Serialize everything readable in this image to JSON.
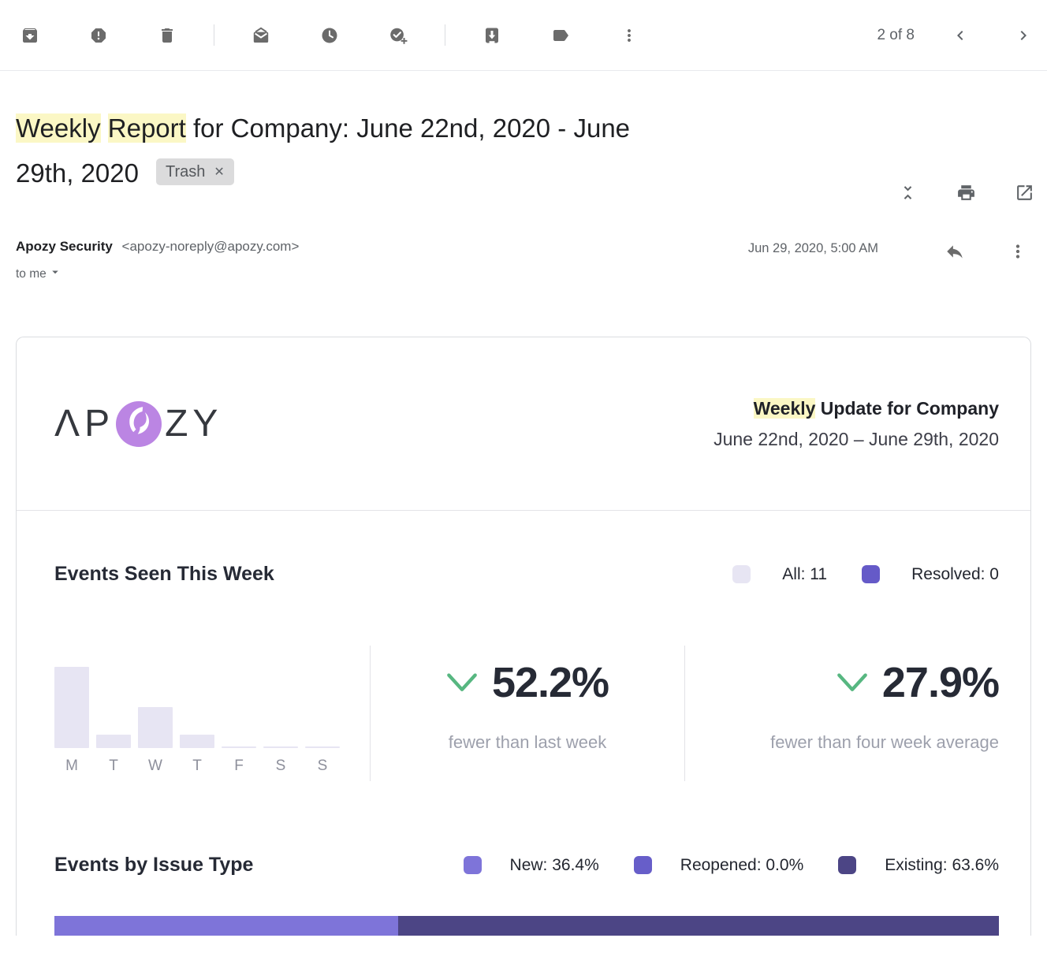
{
  "toolbar": {
    "pagination": "2 of 8",
    "icons": [
      "archive",
      "report-spam",
      "delete",
      "mark-unread",
      "snooze",
      "add-to-tasks",
      "move-to",
      "labels",
      "more"
    ]
  },
  "subject": {
    "highlighted_word_1": "Weekly",
    "highlighted_word_2": "Report",
    "line1_rest": " for Company: June 22nd, 2020 - June",
    "line2": "29th, 2020",
    "label": "Trash",
    "label_close": "✕"
  },
  "sender": {
    "name": "Apozy Security",
    "email": "<apozy-noreply@apozy.com>",
    "recipient": "to me",
    "date": "Jun 29, 2020, 5:00 AM"
  },
  "email_header": {
    "logo_part1": "ΛP",
    "logo_part2": "ZY",
    "title_highlight": "Weekly",
    "title_rest": " Update for Company",
    "date_range": "June 22nd, 2020 – June 29th, 2020"
  },
  "colors": {
    "highlight_yellow": "#fbf7c5",
    "green_down": "#57b781",
    "helmet_purple": "#bb85e3"
  },
  "chart_data": [
    {
      "type": "bar",
      "title": "Events Seen This Week",
      "categories": [
        "M",
        "T",
        "W",
        "T",
        "F",
        "S",
        "S"
      ],
      "values": [
        6,
        1,
        3,
        1,
        0,
        0,
        0
      ],
      "ylim": [
        0,
        6
      ],
      "grid": false,
      "bar_color": "#e7e5f3",
      "legend_position": "top-right",
      "legend": [
        {
          "label": "All: 11",
          "color": "#e7e5f3"
        },
        {
          "label": "Resolved: 0",
          "color": "#655ac8"
        }
      ],
      "stats": [
        {
          "value": "52.2%",
          "direction": "down",
          "label": "fewer than last week"
        },
        {
          "value": "27.9%",
          "direction": "down",
          "label": "fewer than four week average"
        }
      ]
    },
    {
      "type": "stacked-bar",
      "title": "Events by Issue Type",
      "series": [
        {
          "name": "New",
          "value": 36.4,
          "label": "New: 36.4%",
          "color": "#7e74d9"
        },
        {
          "name": "Reopened",
          "value": 0.0,
          "label": "Reopened: 0.0%",
          "color": "#675ec9"
        },
        {
          "name": "Existing",
          "value": 63.6,
          "label": "Existing: 63.6%",
          "color": "#4c4585"
        }
      ]
    }
  ]
}
